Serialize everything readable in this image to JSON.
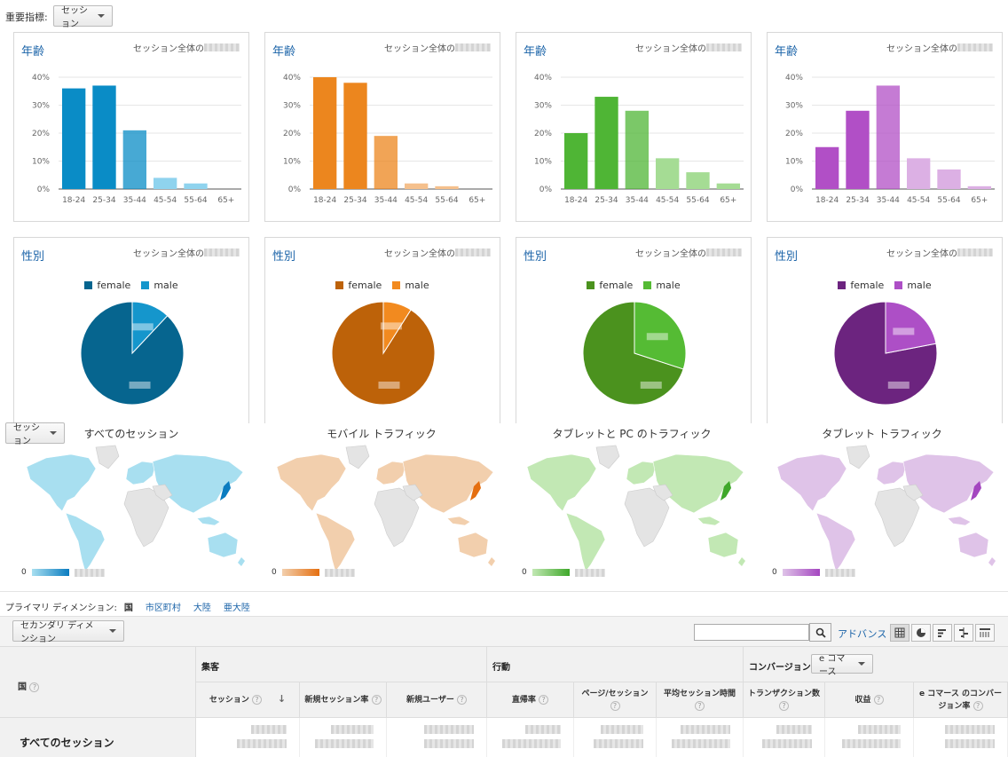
{
  "header": {
    "metric_label": "重要指標:",
    "metric_value": "セッション"
  },
  "age_cards": [
    {
      "title": "年齢",
      "subtitle": "セッション全体の",
      "color_main": "#0a8cc6",
      "color_light": "#8fd3ee",
      "values": [
        36,
        37,
        21,
        4,
        2,
        0
      ]
    },
    {
      "title": "年齢",
      "subtitle": "セッション全体の",
      "color_main": "#ec861e",
      "color_light": "#f5c08c",
      "values": [
        40,
        38,
        19,
        2,
        1,
        0
      ]
    },
    {
      "title": "年齢",
      "subtitle": "セッション全体の",
      "color_main": "#4fb535",
      "color_light": "#a5dc94",
      "values": [
        20,
        33,
        28,
        11,
        6,
        2
      ]
    },
    {
      "title": "年齢",
      "subtitle": "セッション全体の",
      "color_main": "#b14fc6",
      "color_light": "#dcb0e4",
      "values": [
        15,
        28,
        37,
        11,
        7,
        1
      ]
    }
  ],
  "age_categories": [
    "18-24",
    "25-34",
    "35-44",
    "45-54",
    "55-64",
    "65+"
  ],
  "age_ticks": [
    "40%",
    "30%",
    "20%",
    "10%",
    "0%"
  ],
  "gender_cards": [
    {
      "title": "性別",
      "subtitle": "セッション全体の",
      "female_color": "#06658f",
      "male_color": "#1596cc",
      "female_share": 0.88
    },
    {
      "title": "性別",
      "subtitle": "セッション全体の",
      "female_color": "#bd6209",
      "male_color": "#f28a1f",
      "female_share": 0.91
    },
    {
      "title": "性別",
      "subtitle": "セッション全体の",
      "female_color": "#4b921e",
      "male_color": "#55bb34",
      "female_share": 0.7
    },
    {
      "title": "性別",
      "subtitle": "セッション全体の",
      "female_color": "#6c247f",
      "male_color": "#ad4fc6",
      "female_share": 0.78
    }
  ],
  "gender_legend": {
    "female": "female",
    "male": "male"
  },
  "maps": {
    "dropdown": "セッション",
    "scale_min": "0",
    "items": [
      {
        "title": "すべてのセッション",
        "color": "#a8dff0",
        "accent": "#0a7cc0"
      },
      {
        "title": "モバイル トラフィック",
        "color": "#f2cfad",
        "accent": "#e56f10"
      },
      {
        "title": "タブレットと PC のトラフィック",
        "color": "#c2e8b4",
        "accent": "#3fa82a"
      },
      {
        "title": "タブレット トラフィック",
        "color": "#dfc3e8",
        "accent": "#a446c0"
      }
    ]
  },
  "dimension": {
    "label": "プライマリ ディメンション:",
    "active": "国",
    "links": [
      "市区町村",
      "大陸",
      "亜大陸"
    ]
  },
  "toolbar": {
    "secondary": "セカンダリ ディメンション",
    "advanced": "アドバンス"
  },
  "table": {
    "country_header": "国",
    "group_acq": "集客",
    "group_beh": "行動",
    "group_conv": "コンバージョン",
    "conv_select": "e コマース",
    "cols": [
      "セッション",
      "新規セッション率",
      "新規ユーザー",
      "直帰率",
      "ページ/セッション",
      "平均セッション時間",
      "トランザクション数",
      "収益",
      "e コマース のコンバージョン率"
    ],
    "row_label": "すべてのセッション"
  }
}
